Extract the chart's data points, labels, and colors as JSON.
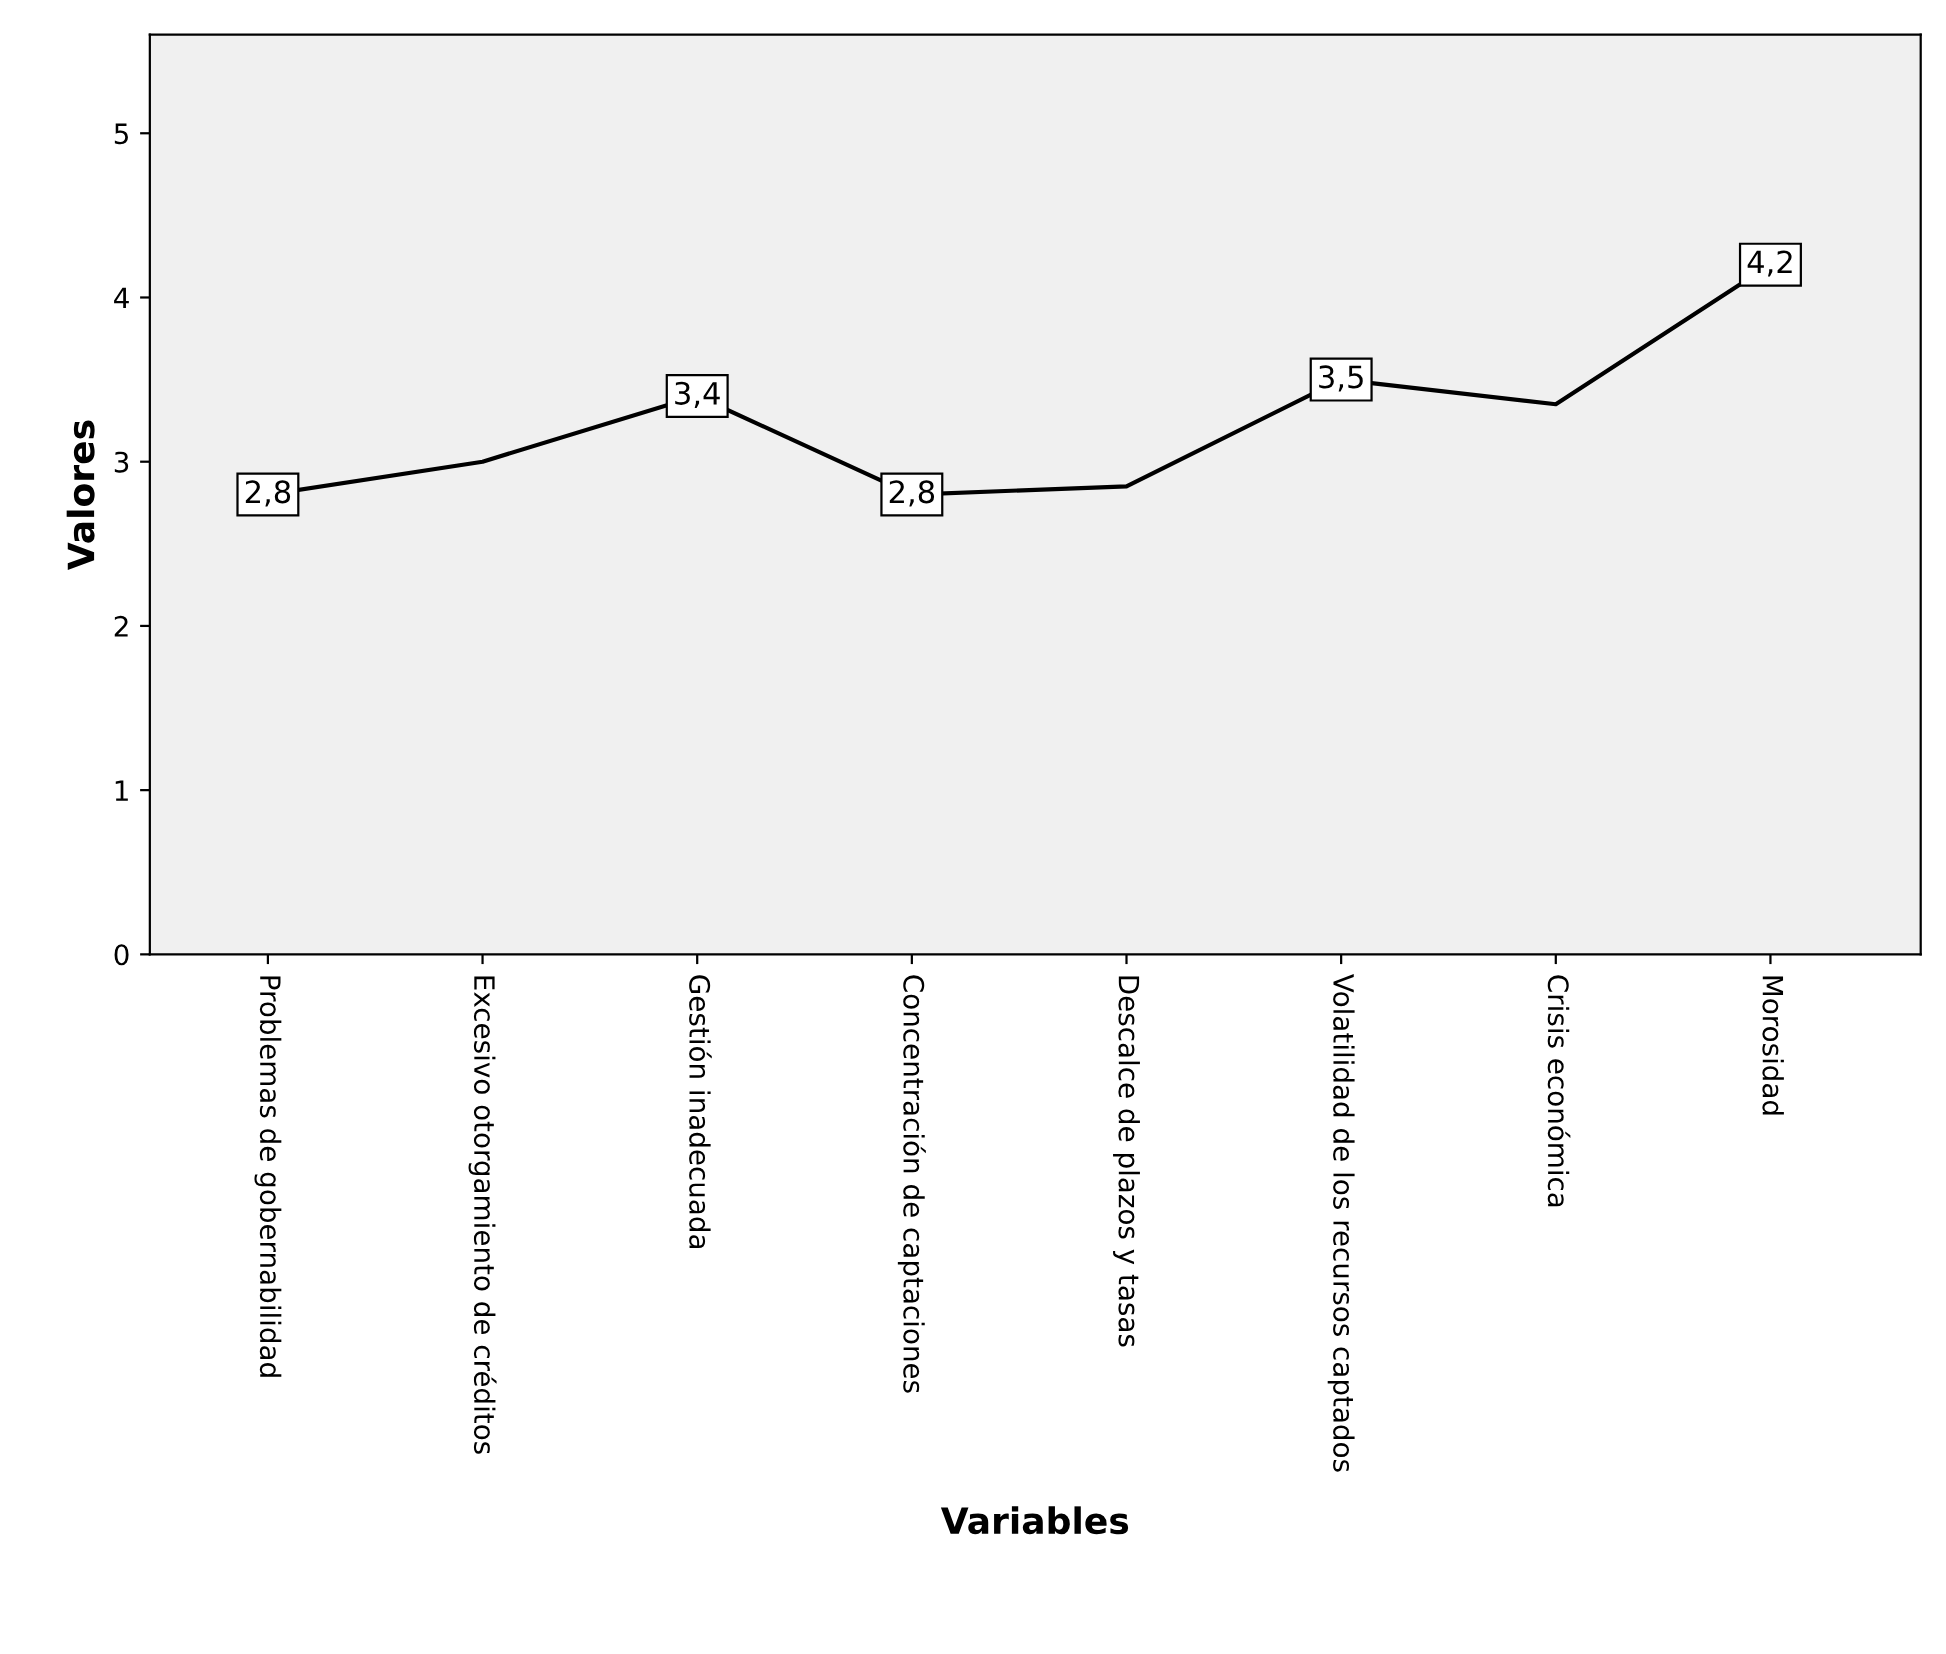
{
  "chart_data": {
    "type": "line",
    "xlabel": "Variables",
    "ylabel": "Valores",
    "categories": [
      "Problemas de gobernabilidad",
      "Excesivo otorgamiento de créditos",
      "Gestión inadecuada",
      "Concentración de captaciones",
      "Descalce de plazos y tasas",
      "Volatilidad de los recursos captados",
      "Crisis económica",
      "Morosidad"
    ],
    "series": [
      {
        "color": "#000000",
        "values": [
          2.8,
          3.0,
          3.4,
          2.8,
          2.85,
          3.5,
          3.35,
          4.2
        ],
        "value_labels": [
          "2,8",
          null,
          "3,4",
          "2,8",
          null,
          "3,5",
          null,
          "4,2"
        ]
      }
    ],
    "ylim": [
      0,
      5.6
    ],
    "yticks": [
      0,
      1,
      2,
      3,
      4,
      5
    ],
    "grid": false,
    "legend": false,
    "line_style": "solid"
  }
}
